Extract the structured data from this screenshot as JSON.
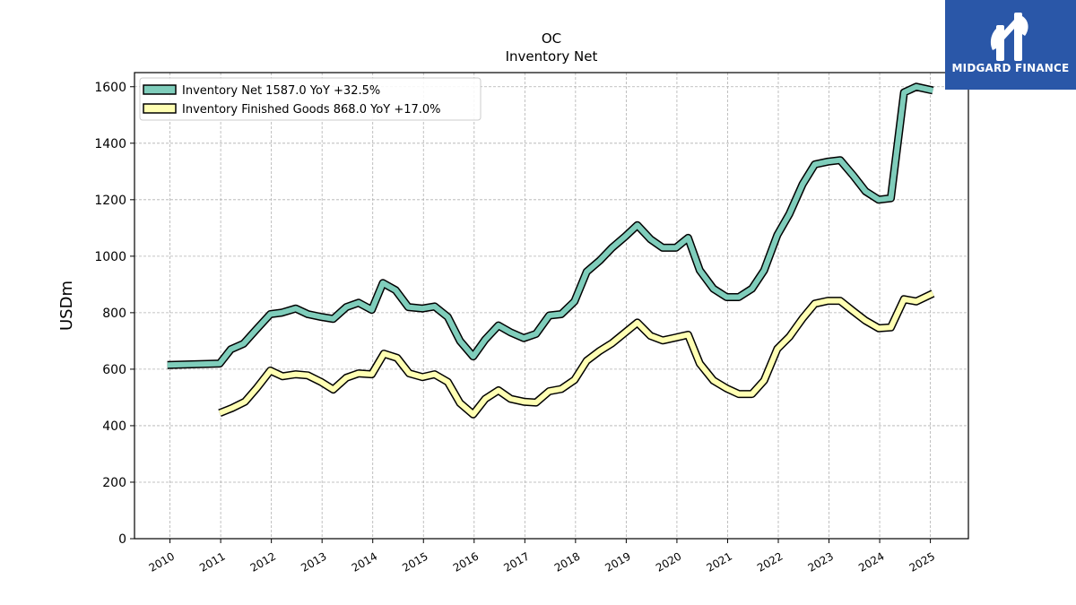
{
  "brand": {
    "name": "MIDGARD FINANCE",
    "color": "#2a57a8"
  },
  "chart_data": {
    "type": "line",
    "title": "OC",
    "subtitle": "Inventory Net",
    "ylabel": "USDm",
    "xlabel": "",
    "ylim": [
      0,
      1650
    ],
    "yticks": [
      0,
      200,
      400,
      600,
      800,
      1000,
      1200,
      1400,
      1600
    ],
    "xlim": [
      2009.3,
      2025.75
    ],
    "xticks": [
      "2010",
      "2011",
      "2012",
      "2013",
      "2014",
      "2015",
      "2016",
      "2017",
      "2018",
      "2019",
      "2020",
      "2021",
      "2022",
      "2023",
      "2024",
      "2025"
    ],
    "grid": true,
    "legend_position": "top-left",
    "series": [
      {
        "name": "Inventory Net",
        "legend_label": "Inventory Net  1587.0 YoY +32.5%",
        "color": "#7fcdbb",
        "points": [
          [
            2009.95,
            615
          ],
          [
            2010.98,
            620
          ],
          [
            2011.2,
            670
          ],
          [
            2011.45,
            690
          ],
          [
            2011.7,
            740
          ],
          [
            2011.98,
            795
          ],
          [
            2012.2,
            800
          ],
          [
            2012.48,
            815
          ],
          [
            2012.72,
            795
          ],
          [
            2012.98,
            785
          ],
          [
            2013.22,
            778
          ],
          [
            2013.48,
            820
          ],
          [
            2013.72,
            835
          ],
          [
            2013.98,
            810
          ],
          [
            2014.2,
            905
          ],
          [
            2014.45,
            880
          ],
          [
            2014.7,
            820
          ],
          [
            2014.98,
            815
          ],
          [
            2015.22,
            822
          ],
          [
            2015.48,
            785
          ],
          [
            2015.72,
            700
          ],
          [
            2015.98,
            645
          ],
          [
            2016.22,
            705
          ],
          [
            2016.48,
            755
          ],
          [
            2016.72,
            730
          ],
          [
            2016.98,
            710
          ],
          [
            2017.22,
            725
          ],
          [
            2017.48,
            790
          ],
          [
            2017.72,
            795
          ],
          [
            2017.98,
            840
          ],
          [
            2018.22,
            945
          ],
          [
            2018.48,
            985
          ],
          [
            2018.72,
            1030
          ],
          [
            2018.98,
            1070
          ],
          [
            2019.22,
            1110
          ],
          [
            2019.48,
            1060
          ],
          [
            2019.72,
            1030
          ],
          [
            2019.98,
            1030
          ],
          [
            2020.22,
            1065
          ],
          [
            2020.45,
            950
          ],
          [
            2020.72,
            885
          ],
          [
            2020.98,
            855
          ],
          [
            2021.22,
            855
          ],
          [
            2021.48,
            885
          ],
          [
            2021.72,
            950
          ],
          [
            2021.98,
            1075
          ],
          [
            2022.22,
            1150
          ],
          [
            2022.48,
            1255
          ],
          [
            2022.72,
            1325
          ],
          [
            2022.98,
            1335
          ],
          [
            2023.22,
            1340
          ],
          [
            2023.48,
            1285
          ],
          [
            2023.72,
            1230
          ],
          [
            2023.98,
            1200
          ],
          [
            2024.22,
            1205
          ],
          [
            2024.48,
            1580
          ],
          [
            2024.72,
            1600
          ],
          [
            2025.05,
            1587
          ]
        ]
      },
      {
        "name": "Inventory Finished Goods",
        "legend_label": "Inventory Finished Goods  868.0 YoY +17.0%",
        "color": "#ffffb3",
        "points": [
          [
            2010.98,
            445
          ],
          [
            2011.22,
            462
          ],
          [
            2011.48,
            485
          ],
          [
            2011.72,
            535
          ],
          [
            2011.98,
            595
          ],
          [
            2012.22,
            575
          ],
          [
            2012.48,
            582
          ],
          [
            2012.72,
            578
          ],
          [
            2012.98,
            555
          ],
          [
            2013.22,
            528
          ],
          [
            2013.48,
            570
          ],
          [
            2013.72,
            585
          ],
          [
            2013.98,
            582
          ],
          [
            2014.22,
            655
          ],
          [
            2014.48,
            640
          ],
          [
            2014.72,
            585
          ],
          [
            2014.98,
            572
          ],
          [
            2015.22,
            582
          ],
          [
            2015.48,
            555
          ],
          [
            2015.72,
            480
          ],
          [
            2015.98,
            440
          ],
          [
            2016.22,
            495
          ],
          [
            2016.48,
            525
          ],
          [
            2016.72,
            495
          ],
          [
            2016.98,
            485
          ],
          [
            2017.22,
            482
          ],
          [
            2017.48,
            522
          ],
          [
            2017.72,
            530
          ],
          [
            2017.98,
            562
          ],
          [
            2018.22,
            630
          ],
          [
            2018.48,
            665
          ],
          [
            2018.72,
            692
          ],
          [
            2018.98,
            730
          ],
          [
            2019.22,
            765
          ],
          [
            2019.48,
            718
          ],
          [
            2019.72,
            702
          ],
          [
            2019.98,
            712
          ],
          [
            2020.22,
            722
          ],
          [
            2020.45,
            620
          ],
          [
            2020.72,
            560
          ],
          [
            2020.98,
            532
          ],
          [
            2021.22,
            512
          ],
          [
            2021.48,
            512
          ],
          [
            2021.72,
            560
          ],
          [
            2021.98,
            672
          ],
          [
            2022.22,
            715
          ],
          [
            2022.48,
            780
          ],
          [
            2022.72,
            832
          ],
          [
            2022.98,
            842
          ],
          [
            2023.22,
            842
          ],
          [
            2023.48,
            805
          ],
          [
            2023.72,
            772
          ],
          [
            2023.98,
            745
          ],
          [
            2024.22,
            748
          ],
          [
            2024.48,
            848
          ],
          [
            2024.72,
            840
          ],
          [
            2025.05,
            868
          ]
        ]
      }
    ]
  }
}
